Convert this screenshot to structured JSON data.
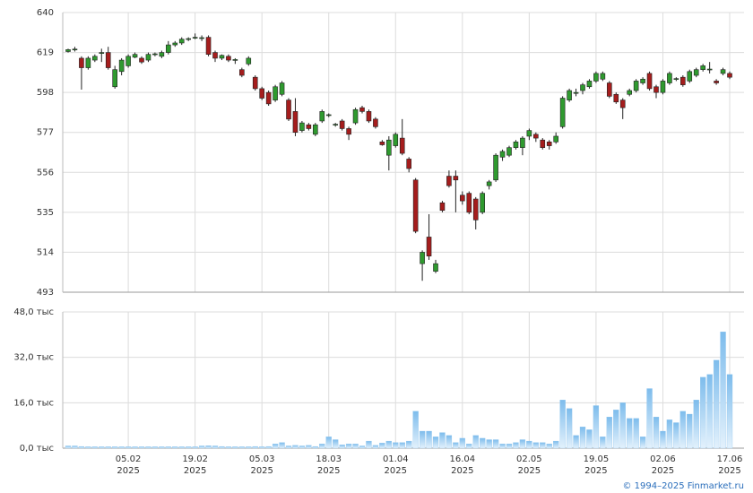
{
  "chart_data": {
    "type": "candlestick",
    "categories": [
      null,
      null,
      null,
      null,
      null,
      null,
      null,
      null,
      null,
      [
        "05.02",
        "2025"
      ],
      null,
      null,
      null,
      null,
      null,
      null,
      null,
      null,
      null,
      [
        "19.02",
        "2025"
      ],
      null,
      null,
      null,
      null,
      null,
      null,
      null,
      null,
      null,
      [
        "05.03",
        "2025"
      ],
      null,
      null,
      null,
      null,
      null,
      null,
      null,
      null,
      null,
      [
        "18.03",
        "2025"
      ],
      null,
      null,
      null,
      null,
      null,
      null,
      null,
      null,
      null,
      [
        "01.04",
        "2025"
      ],
      null,
      null,
      null,
      null,
      null,
      null,
      null,
      null,
      null,
      [
        "16.04",
        "2025"
      ],
      null,
      null,
      null,
      null,
      null,
      null,
      null,
      null,
      null,
      [
        "02.05",
        "2025"
      ],
      null,
      null,
      null,
      null,
      null,
      null,
      null,
      null,
      null,
      [
        "19.05",
        "2025"
      ],
      null,
      null,
      null,
      null,
      null,
      null,
      null,
      null,
      null,
      [
        "02.06",
        "2025"
      ],
      null,
      null,
      null,
      null,
      null,
      null,
      null,
      null,
      null,
      [
        "17.06",
        "2025"
      ]
    ],
    "open": [
      619.5,
      620.5,
      616,
      611,
      615,
      618.5,
      619,
      601,
      609,
      612,
      616.5,
      616,
      615,
      618,
      617,
      619,
      623,
      624,
      626,
      626.8,
      626.5,
      627,
      619,
      616,
      617,
      615,
      610,
      613,
      606,
      600,
      598,
      594,
      597,
      594,
      588,
      578,
      581,
      576,
      583,
      586,
      581,
      583,
      579,
      582,
      590,
      588,
      584,
      572,
      565,
      570,
      574,
      563,
      552,
      508,
      522,
      504,
      540,
      554,
      554,
      544,
      545,
      542,
      535,
      549,
      552,
      564,
      565,
      569,
      569,
      575,
      576,
      573,
      572,
      572,
      580,
      594,
      597.5,
      599,
      601,
      604,
      605,
      603,
      597,
      594,
      597,
      599,
      603,
      608,
      601,
      598,
      603,
      605,
      606,
      604,
      607,
      610,
      610,
      604,
      608,
      608
    ],
    "high": [
      621,
      622,
      617,
      617,
      618,
      621,
      622,
      612,
      616,
      618,
      619,
      617,
      619,
      619,
      620,
      625,
      625,
      627,
      627,
      629,
      628,
      628,
      620,
      618,
      618,
      616,
      611,
      617,
      607,
      601,
      599,
      602,
      604,
      595,
      595,
      583,
      582,
      582,
      589,
      587,
      582,
      584,
      580,
      590,
      591,
      589,
      585,
      573,
      575,
      577,
      584,
      564,
      553,
      515,
      534,
      510,
      541,
      557,
      557,
      546,
      546,
      543,
      546,
      552,
      566,
      568,
      570,
      573,
      575,
      579,
      577,
      574,
      573,
      577,
      596,
      600,
      600,
      603,
      605,
      609,
      609,
      604,
      598,
      595,
      600,
      605,
      606,
      609,
      602,
      605,
      609,
      606,
      607,
      610,
      611,
      613,
      614,
      605,
      611,
      609
    ],
    "low": [
      619,
      619.5,
      599.5,
      610,
      614,
      614,
      610,
      600,
      607,
      611,
      616,
      613,
      614,
      617,
      616,
      618,
      622,
      623,
      625,
      626,
      625,
      617,
      614,
      615,
      614,
      613,
      606,
      612,
      599,
      594,
      591,
      593,
      596,
      583,
      575,
      577,
      578,
      575,
      582,
      585,
      580,
      578,
      573,
      581,
      587,
      582,
      579,
      570,
      557,
      569,
      565,
      556,
      524,
      499,
      510,
      503,
      535,
      548,
      535,
      539,
      534,
      526,
      534,
      547,
      551,
      562,
      564,
      568,
      565,
      573,
      572,
      568,
      568,
      571,
      579,
      593,
      596,
      597,
      600,
      603,
      604,
      595,
      592,
      584,
      596,
      598,
      602,
      599,
      595,
      597,
      602,
      604,
      601,
      603,
      606,
      609,
      608,
      602,
      607,
      605
    ],
    "close": [
      620.5,
      620.8,
      611,
      616,
      617,
      619,
      611,
      610,
      615,
      617,
      618,
      614,
      618,
      618.3,
      619,
      623,
      624,
      626,
      626.3,
      627,
      626.8,
      618,
      616,
      617.5,
      615,
      615.3,
      607,
      616,
      600,
      595,
      592,
      601,
      603,
      584,
      577,
      582,
      579,
      581,
      588,
      586.3,
      581.3,
      579,
      576,
      589,
      588,
      583,
      580,
      570.5,
      573,
      576,
      566,
      558,
      525,
      514,
      512,
      508,
      536,
      549,
      552,
      541,
      535,
      531,
      545,
      551,
      565,
      567,
      569,
      572,
      574,
      578,
      574,
      569,
      570,
      575,
      595,
      599,
      598,
      602,
      604,
      608,
      608,
      596,
      593,
      590,
      599,
      604,
      605,
      600,
      598,
      604,
      608,
      605.3,
      602,
      609,
      610,
      612,
      610.3,
      603,
      610,
      606
    ],
    "up_color": "#2f9a2f",
    "down_color": "#a51d1d",
    "ylim": [
      493,
      640
    ],
    "yticks": [
      493,
      514,
      535,
      556,
      577,
      598,
      619,
      640
    ],
    "volume": [
      800,
      800,
      600,
      500,
      500,
      500,
      500,
      500,
      500,
      500,
      500,
      500,
      500,
      500,
      500,
      500,
      500,
      500,
      500,
      500,
      800,
      900,
      800,
      600,
      500,
      500,
      500,
      500,
      600,
      500,
      600,
      1500,
      2000,
      800,
      1000,
      800,
      1000,
      600,
      1500,
      4000,
      3000,
      1200,
      1500,
      1500,
      800,
      2500,
      1000,
      1800,
      2500,
      2000,
      2000,
      2500,
      13000,
      6000,
      6000,
      4000,
      5500,
      4500,
      2000,
      3500,
      1500,
      4500,
      3500,
      3000,
      3000,
      1500,
      1500,
      2000,
      3000,
      2500,
      2000,
      2000,
      1500,
      2500,
      17000,
      14000,
      4500,
      7500,
      6500,
      15000,
      4000,
      11000,
      13500,
      16000,
      10500,
      10500,
      4000,
      21000,
      11000,
      6000,
      10000,
      9000,
      13000,
      12000,
      17000,
      25000,
      26000,
      31000,
      41000,
      26000
    ],
    "volume_color": "#8ec5ef",
    "volume_ylim": [
      0,
      48000
    ],
    "volume_yticks": [
      {
        "value": 0,
        "label": "0,0 тыс"
      },
      {
        "value": 16000,
        "label": "16,0 тыс"
      },
      {
        "value": 32000,
        "label": "32,0 тыс"
      },
      {
        "value": 48000,
        "label": "48,0 тыс"
      }
    ],
    "grid": true,
    "copyright": "© 1994–2025 Finmarket.ru"
  }
}
